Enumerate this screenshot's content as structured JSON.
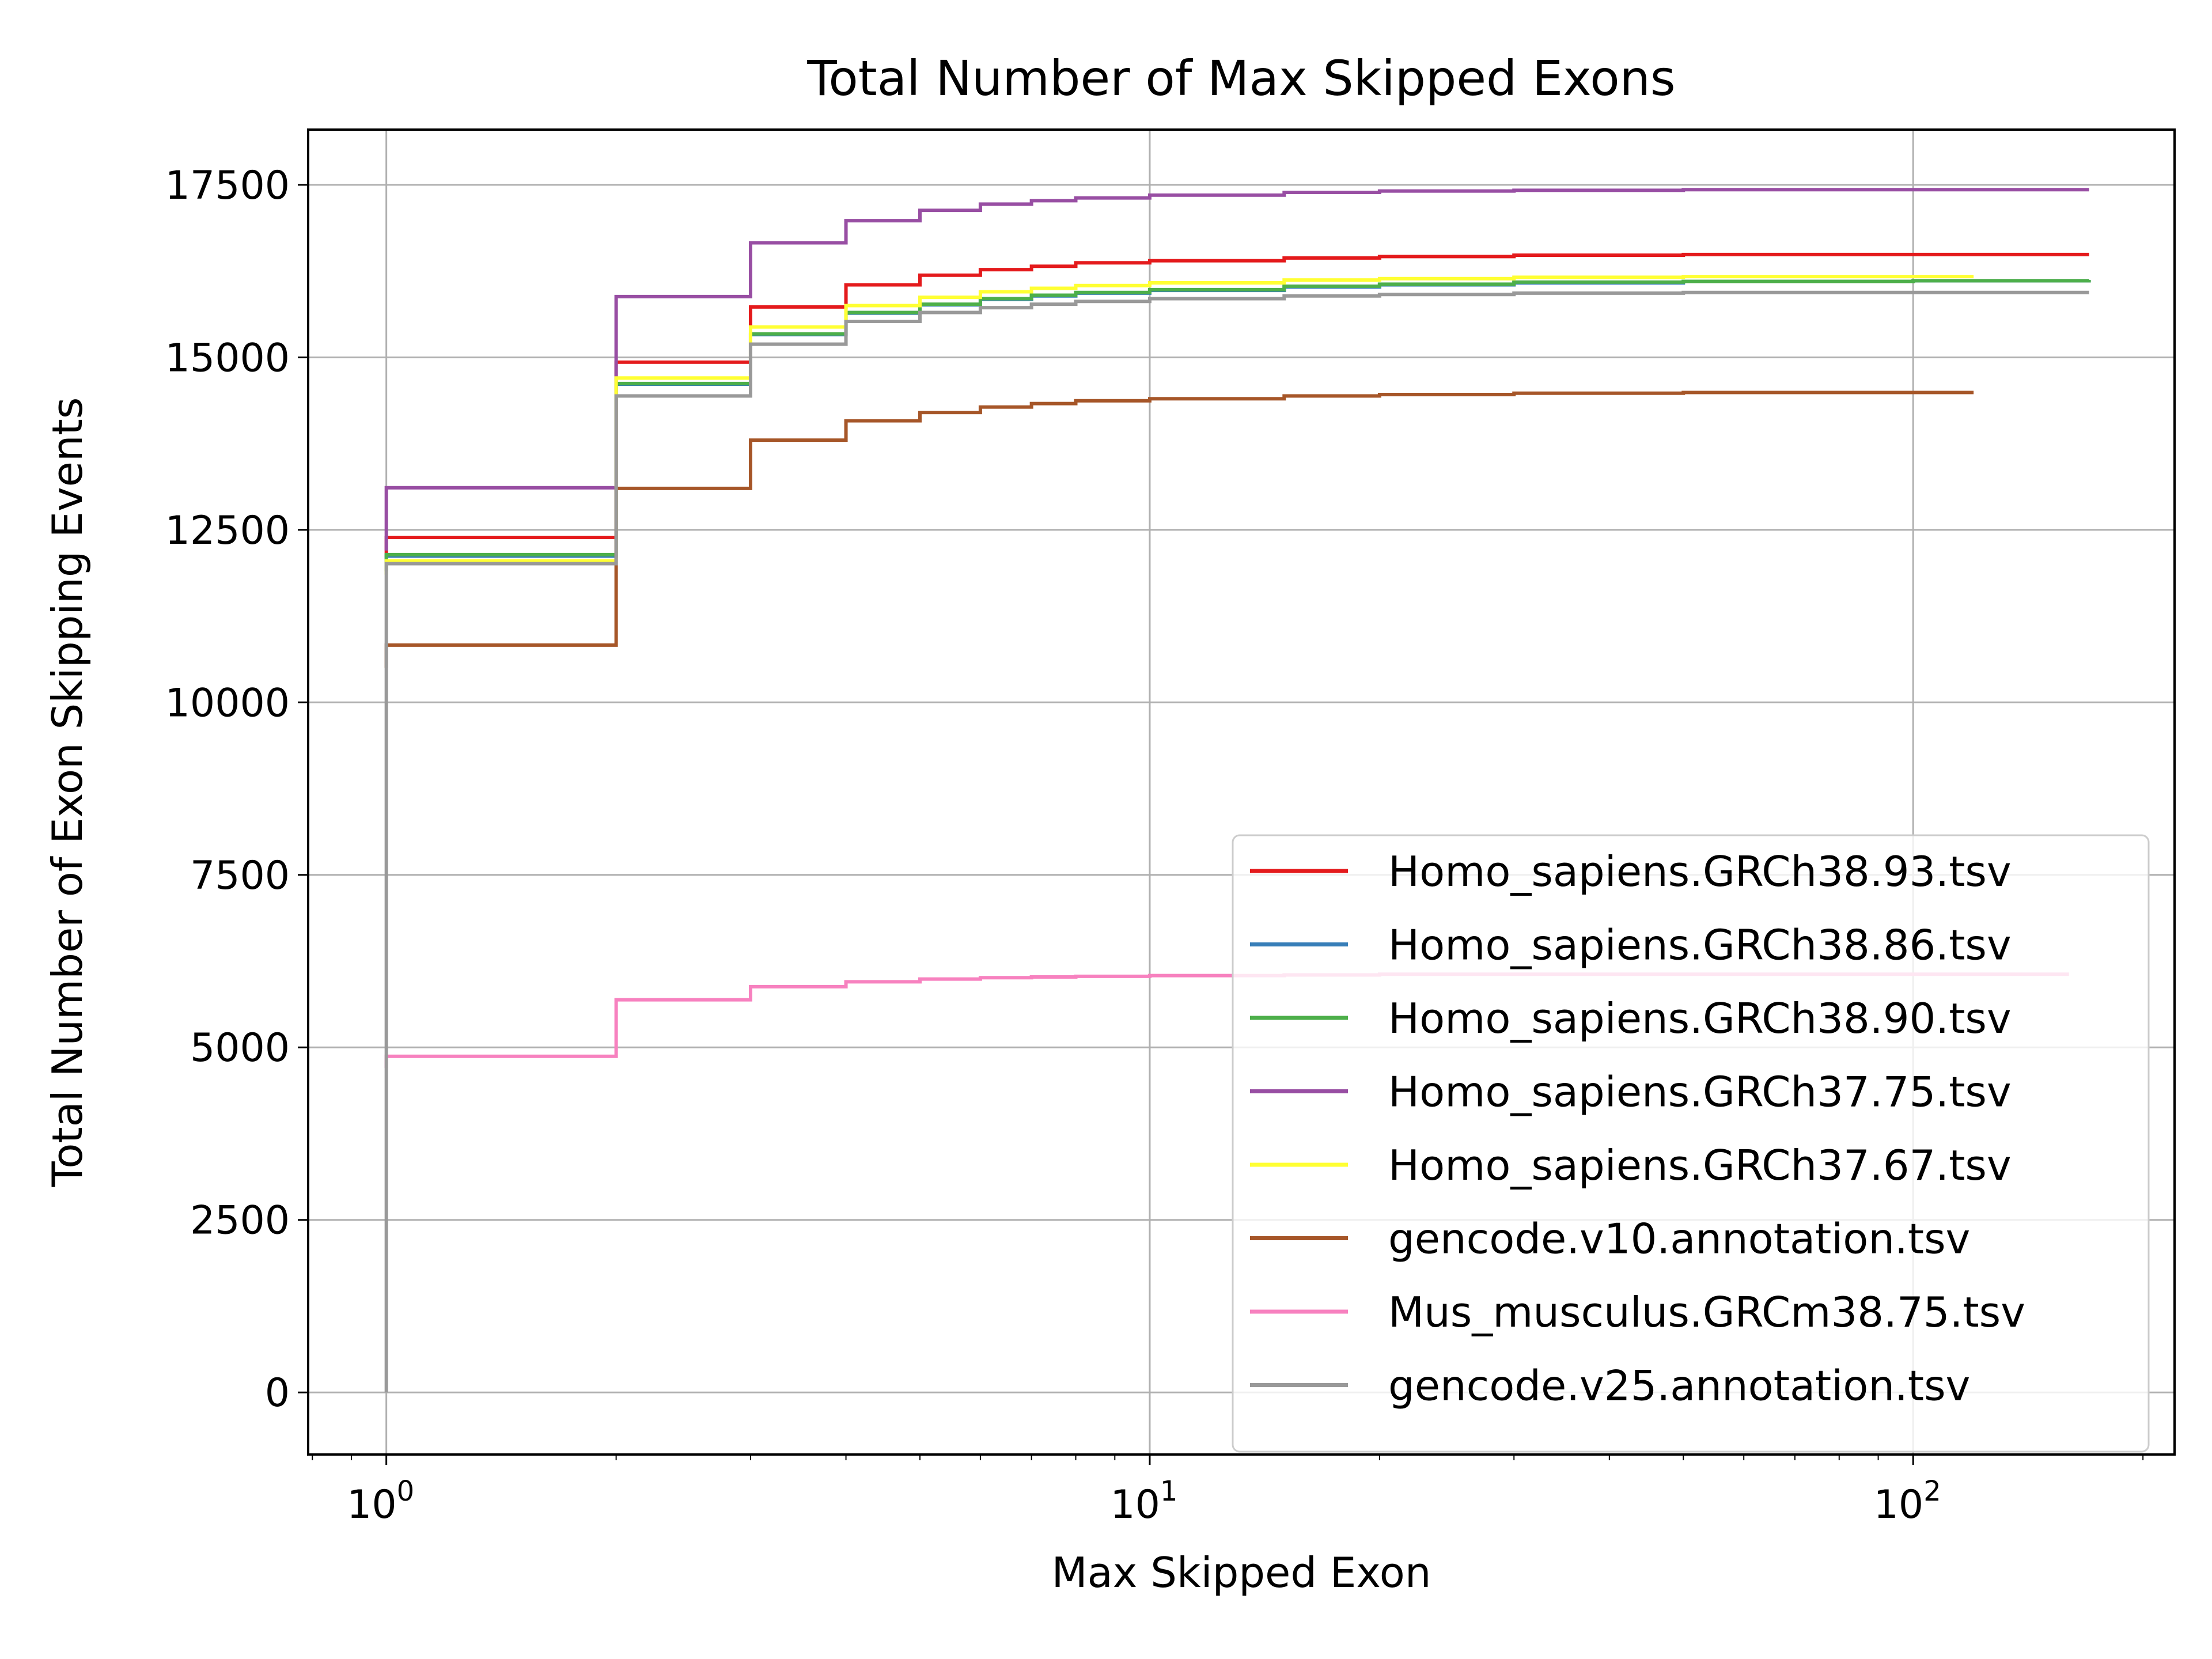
{
  "chart_data": {
    "type": "line",
    "step": true,
    "title": "Total Number of Max Skipped Exons",
    "xlabel": "Max Skipped Exon",
    "ylabel": "Total Number of Exon Skipping Events",
    "xscale": "log",
    "xlim": [
      0.79,
      220
    ],
    "ylim": [
      -900,
      18300
    ],
    "xticks": [
      {
        "value": 1,
        "base": "10",
        "exp": "0"
      },
      {
        "value": 10,
        "base": "10",
        "exp": "1"
      },
      {
        "value": 100,
        "base": "10",
        "exp": "2"
      }
    ],
    "yticks": [
      {
        "value": 0,
        "label": "0"
      },
      {
        "value": 2500,
        "label": "2500"
      },
      {
        "value": 5000,
        "label": "5000"
      },
      {
        "value": 7500,
        "label": "7500"
      },
      {
        "value": 10000,
        "label": "10000"
      },
      {
        "value": 12500,
        "label": "12500"
      },
      {
        "value": 15000,
        "label": "15000"
      },
      {
        "value": 17500,
        "label": "17500"
      }
    ],
    "grid": true,
    "legend_position": "lower right",
    "series": [
      {
        "name": "Homo_sapiens.GRCh38.93.tsv",
        "color": "#e41a1c",
        "x": [
          1,
          1,
          2,
          3,
          4,
          5,
          6,
          7,
          8,
          10,
          15,
          20,
          30,
          50,
          100,
          170
        ],
        "y": [
          12100,
          12390,
          14930,
          15730,
          16050,
          16190,
          16270,
          16320,
          16370,
          16400,
          16440,
          16460,
          16480,
          16490,
          16490,
          16490
        ]
      },
      {
        "name": "Homo_sapiens.GRCh38.86.tsv",
        "color": "#377eb8",
        "x": [
          1,
          1,
          2,
          3,
          4,
          5,
          6,
          7,
          8,
          10,
          15,
          20,
          30,
          50,
          100,
          170
        ],
        "y": [
          11900,
          12120,
          14610,
          15330,
          15640,
          15760,
          15840,
          15890,
          15930,
          15970,
          16020,
          16050,
          16080,
          16100,
          16110,
          16120
        ]
      },
      {
        "name": "Homo_sapiens.GRCh38.90.tsv",
        "color": "#4daf4a",
        "x": [
          1,
          1,
          2,
          3,
          4,
          5,
          6,
          7,
          8,
          10,
          15,
          20,
          30,
          50,
          100,
          170
        ],
        "y": [
          11900,
          12140,
          14620,
          15340,
          15650,
          15770,
          15850,
          15900,
          15940,
          15980,
          16030,
          16060,
          16090,
          16100,
          16110,
          16120
        ]
      },
      {
        "name": "Homo_sapiens.GRCh37.75.tsv",
        "color": "#984ea3",
        "x": [
          1,
          1,
          2,
          3,
          4,
          5,
          6,
          7,
          8,
          10,
          15,
          20,
          30,
          50,
          100,
          170
        ],
        "y": [
          12200,
          13110,
          15880,
          16660,
          16980,
          17130,
          17220,
          17270,
          17310,
          17350,
          17390,
          17410,
          17420,
          17430,
          17430,
          17430
        ]
      },
      {
        "name": "Homo_sapiens.GRCh37.67.tsv",
        "color": "#ffff33",
        "x": [
          1,
          1,
          2,
          3,
          4,
          5,
          6,
          7,
          8,
          10,
          15,
          20,
          30,
          50,
          100,
          120
        ],
        "y": [
          11850,
          12050,
          14700,
          15440,
          15750,
          15870,
          15950,
          16000,
          16040,
          16080,
          16120,
          16140,
          16160,
          16170,
          16170,
          16170
        ]
      },
      {
        "name": "gencode.v10.annotation.tsv",
        "color": "#a65628",
        "x": [
          1,
          1,
          2,
          3,
          4,
          5,
          6,
          7,
          8,
          10,
          15,
          20,
          30,
          50,
          100,
          120
        ],
        "y": [
          10500,
          10830,
          13100,
          13800,
          14080,
          14200,
          14280,
          14330,
          14370,
          14400,
          14440,
          14460,
          14480,
          14490,
          14490,
          14490
        ]
      },
      {
        "name": "Mus_musculus.GRCm38.75.tsv",
        "color": "#f781bf",
        "x": [
          1,
          1,
          2,
          3,
          4,
          5,
          6,
          7,
          8,
          10,
          15,
          20,
          30,
          50,
          100,
          160
        ],
        "y": [
          4700,
          4870,
          5690,
          5880,
          5950,
          5990,
          6010,
          6020,
          6030,
          6040,
          6050,
          6060,
          6060,
          6060,
          6060,
          6060
        ]
      },
      {
        "name": "gencode.v25.annotation.tsv",
        "color": "#999999",
        "x": [
          1,
          1,
          2,
          3,
          4,
          5,
          6,
          7,
          8,
          10,
          15,
          20,
          30,
          50,
          100,
          170
        ],
        "y": [
          0,
          12010,
          14440,
          15190,
          15520,
          15650,
          15720,
          15770,
          15810,
          15850,
          15890,
          15910,
          15930,
          15940,
          15940,
          15940
        ]
      }
    ]
  }
}
